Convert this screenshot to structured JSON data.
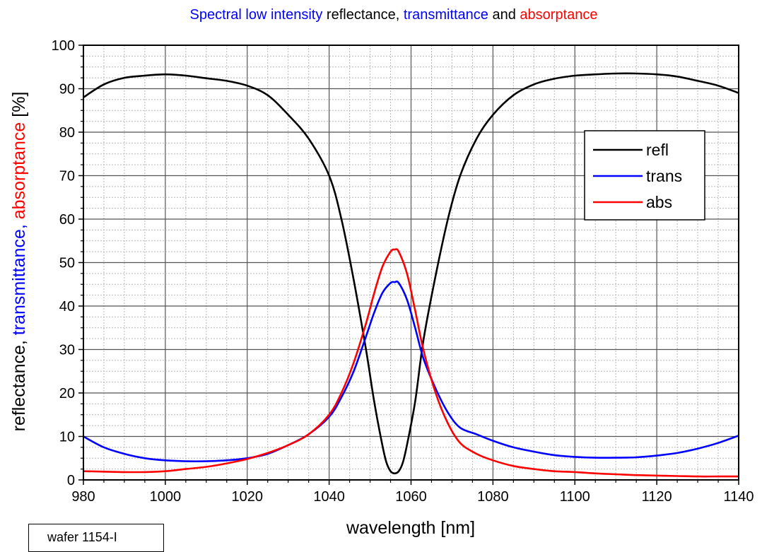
{
  "chart_data": {
    "type": "line",
    "title_parts": [
      {
        "text": "Spectral low intensity ",
        "color": "#0000ff"
      },
      {
        "text": "reflectance, ",
        "color": "#000000"
      },
      {
        "text": "transmittance",
        "color": "#0000ff"
      },
      {
        "text": " and ",
        "color": "#000000"
      },
      {
        "text": "absorptance",
        "color": "#ff0000"
      }
    ],
    "xlabel": "wavelength [nm]",
    "ylabel_parts": [
      {
        "text": "reflectance, ",
        "color": "#000000"
      },
      {
        "text": "transmittance, ",
        "color": "#0000ff"
      },
      {
        "text": "absorptance",
        "color": "#ff0000"
      },
      {
        "text": " [%]",
        "color": "#000000"
      }
    ],
    "xlim": [
      980,
      1140
    ],
    "ylim": [
      0,
      100
    ],
    "xticks": [
      980,
      1000,
      1020,
      1040,
      1060,
      1080,
      1100,
      1120,
      1140
    ],
    "yticks": [
      0,
      10,
      20,
      30,
      40,
      50,
      60,
      70,
      80,
      90,
      100
    ],
    "x_minor_step": 5,
    "y_minor_step": 2.5,
    "grid": true,
    "legend_position": "right",
    "series": [
      {
        "name": "refl",
        "color": "#000000",
        "x": [
          980,
          985,
          990,
          995,
          1000,
          1005,
          1010,
          1015,
          1020,
          1025,
          1030,
          1035,
          1040,
          1043,
          1046,
          1049,
          1051,
          1053,
          1054,
          1055,
          1056,
          1057,
          1058,
          1059,
          1061,
          1063,
          1066,
          1069,
          1072,
          1076,
          1080,
          1085,
          1090,
          1095,
          1100,
          1105,
          1110,
          1115,
          1120,
          1125,
          1130,
          1135,
          1140
        ],
        "y": [
          88,
          91,
          92.5,
          93,
          93.3,
          93,
          92.4,
          91.8,
          90.7,
          88.5,
          84,
          78.5,
          70,
          60,
          46,
          30,
          18,
          8,
          4,
          2,
          1.5,
          2,
          4,
          8,
          18,
          32,
          47,
          60,
          70,
          78.5,
          84,
          88.5,
          91,
          92.3,
          93,
          93.3,
          93.5,
          93.5,
          93.3,
          92.8,
          91.8,
          90.7,
          89
        ]
      },
      {
        "name": "trans",
        "color": "#0000ff",
        "x": [
          980,
          985,
          990,
          995,
          1000,
          1005,
          1010,
          1015,
          1020,
          1025,
          1030,
          1035,
          1040,
          1043,
          1046,
          1049,
          1051,
          1053,
          1055,
          1056,
          1057,
          1059,
          1061,
          1063,
          1066,
          1069,
          1072,
          1076,
          1080,
          1085,
          1090,
          1095,
          1100,
          1105,
          1110,
          1115,
          1120,
          1125,
          1130,
          1135,
          1140
        ],
        "y": [
          10,
          7.5,
          6,
          5,
          4.5,
          4.3,
          4.3,
          4.5,
          5,
          6,
          8,
          10.5,
          14.5,
          19,
          25,
          33,
          38.5,
          43,
          45.3,
          45.5,
          45.3,
          41.5,
          35,
          28,
          21,
          15.5,
          12,
          10.5,
          9,
          7.5,
          6.5,
          5.7,
          5.3,
          5.1,
          5.1,
          5.2,
          5.6,
          6.2,
          7.2,
          8.5,
          10.2
        ]
      },
      {
        "name": "abs",
        "color": "#ff0000",
        "x": [
          980,
          985,
          990,
          995,
          1000,
          1005,
          1010,
          1015,
          1020,
          1025,
          1030,
          1035,
          1040,
          1043,
          1046,
          1049,
          1051,
          1053,
          1055,
          1056,
          1057,
          1059,
          1061,
          1063,
          1066,
          1069,
          1072,
          1076,
          1080,
          1085,
          1090,
          1095,
          1100,
          1105,
          1110,
          1115,
          1120,
          1125,
          1130,
          1135,
          1140
        ],
        "y": [
          2,
          1.9,
          1.8,
          1.8,
          2,
          2.5,
          3,
          3.8,
          4.8,
          6.2,
          8,
          10.5,
          15,
          20,
          27,
          36,
          43,
          49,
          52.5,
          53,
          52.5,
          47.5,
          39,
          30,
          20,
          13,
          8.5,
          6,
          4.5,
          3.2,
          2.5,
          2,
          1.8,
          1.5,
          1.3,
          1.1,
          1,
          0.9,
          0.8,
          0.8,
          0.8
        ]
      }
    ]
  },
  "sample_label": "wafer 1154-I"
}
